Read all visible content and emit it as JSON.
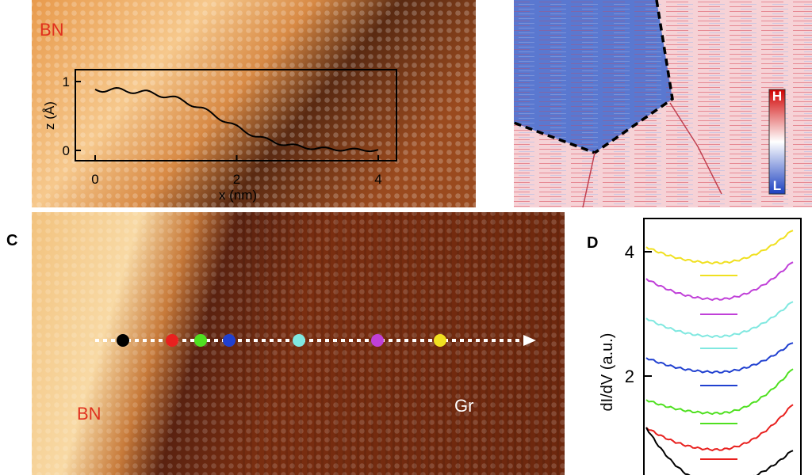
{
  "panel_a": {
    "text": "BN",
    "inset": {
      "x_label": "x (nm)",
      "y_label": "z (Å)",
      "xticks": [
        0,
        2,
        4
      ],
      "yticks": [
        0,
        1
      ]
    }
  },
  "panel_b": {
    "colorbar": {
      "high": "H",
      "low": "L"
    }
  },
  "panel_c": {
    "label": "C",
    "texts": [
      "BN",
      "Gr"
    ]
  },
  "panel_d": {
    "label": "D",
    "y_label": "dI/dV (a.u.)",
    "yticks": [
      2,
      4
    ]
  }
}
